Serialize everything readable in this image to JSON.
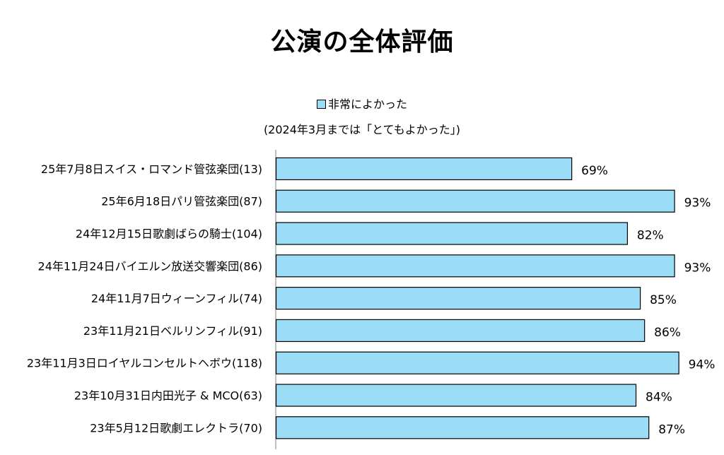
{
  "chart_data": {
    "type": "bar",
    "orientation": "horizontal",
    "title": "公演の全体評価",
    "note": "(2024年3月までは「とてもよかった」)",
    "categories": [
      "25年7月8日スイス・ロマンド管弦楽団(13)",
      "25年6月18日パリ管弦楽団(87)",
      "24年12月15日歌劇ばらの騎士(104)",
      "24年11月24日バイエルン放送交響楽団(86)",
      "24年11月7日ウィーンフィル(74)",
      "23年11月21日ベルリンフィル(91)",
      "23年11月3日ロイヤルコンセルトヘボウ(118)",
      "23年10月31日内田光子 & MCO(63)",
      "23年5月12日歌劇エレクトラ(70)"
    ],
    "series": [
      {
        "name": "非常によかった",
        "values": [
          69,
          93,
          82,
          93,
          85,
          86,
          94,
          84,
          87
        ],
        "labels": [
          "69%",
          "93%",
          "82%",
          "93%",
          "85%",
          "86%",
          "94%",
          "84%",
          "87%"
        ]
      }
    ],
    "xlim": [
      0,
      100
    ],
    "grid": false,
    "legend_position": "top-center",
    "colors": {
      "bar_fill": "#9BDCF7",
      "bar_stroke": "#000000",
      "axis": "#808080"
    }
  }
}
